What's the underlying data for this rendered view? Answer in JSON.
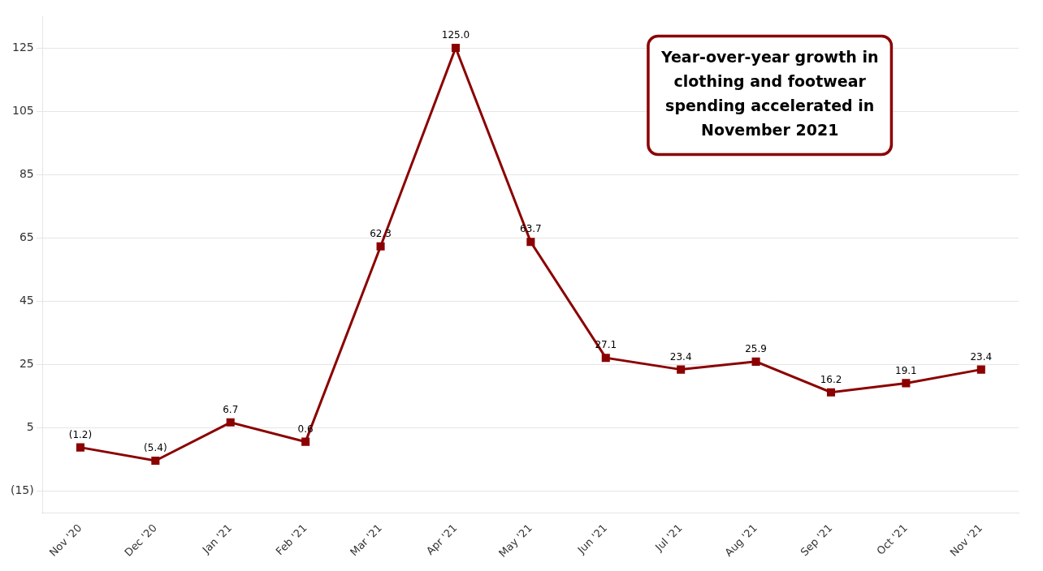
{
  "chart_data": {
    "type": "line",
    "categories": [
      "Nov '20",
      "Dec '20",
      "Jan '21",
      "Feb '21",
      "Mar '21",
      "Apr '21",
      "May '21",
      "Jun '21",
      "Jul '21",
      "Aug '21",
      "Sep '21",
      "Oct '21",
      "Nov '21"
    ],
    "values": [
      -1.2,
      -5.4,
      6.7,
      0.6,
      62.3,
      125.0,
      63.7,
      27.1,
      23.4,
      25.9,
      16.2,
      19.1,
      23.4
    ],
    "value_labels": [
      "(1.2)",
      "(5.4)",
      "6.7",
      "0.6",
      "62.3",
      "125.0",
      "63.7",
      "27.1",
      "23.4",
      "25.9",
      "16.2",
      "19.1",
      "23.4"
    ],
    "data_labels": true,
    "color": "#8B0000",
    "marker": "square",
    "annotation": "Year-over-year growth in\nclothing and footwear\nspending accelerated in\nNovember 2021",
    "ylim": [
      -22,
      135
    ],
    "yticks": [
      {
        "value": -15,
        "label": "(15)"
      },
      5,
      25,
      45,
      65,
      85,
      105,
      125
    ],
    "grid": true
  }
}
